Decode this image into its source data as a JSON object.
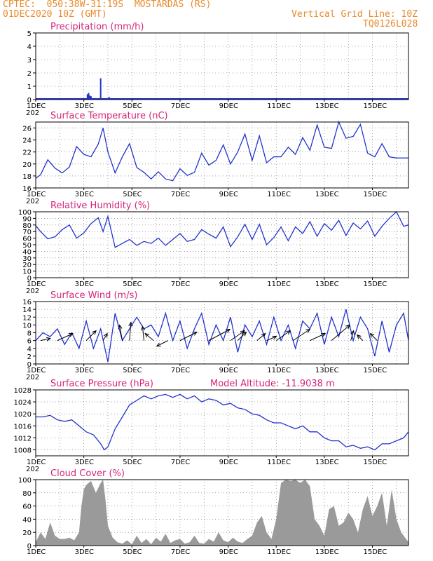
{
  "header": {
    "station_line": "CPTEC:  050:38W-31:19S  MOSTARDAS (RS)",
    "date_line": "01DEC2020 10Z (GMT)",
    "grid_line": "Vertical Grid Line: 10Z",
    "code": "TQ0126L028"
  },
  "x_tick_labels": [
    "1DEC",
    "3DEC",
    "5DEC",
    "7DEC",
    "9DEC",
    "11DEC",
    "13DEC",
    "15DEC"
  ],
  "year_stub": "202",
  "chart_data": [
    {
      "id": "precip",
      "type": "bar",
      "title": "Precipitation (mm/h)",
      "ylim": [
        0,
        5
      ],
      "yticks": [
        0,
        1,
        2,
        3,
        4,
        5
      ],
      "color": "#2233cc",
      "x": [
        2.15,
        2.2,
        2.25,
        2.3,
        2.35,
        2.7,
        3.05
      ],
      "values": [
        0.4,
        0.5,
        0.3,
        0.25,
        0.1,
        1.6,
        0.2
      ]
    },
    {
      "id": "temp",
      "type": "line",
      "title": "Surface Temperature (nC)",
      "ylim": [
        16,
        27
      ],
      "yticks": [
        16,
        18,
        20,
        22,
        24,
        26
      ],
      "color": "#2233cc",
      "x": [
        0,
        0.2,
        0.5,
        0.8,
        1.1,
        1.4,
        1.7,
        2.0,
        2.3,
        2.6,
        2.8,
        3.0,
        3.3,
        3.6,
        3.9,
        4.2,
        4.5,
        4.8,
        5.1,
        5.4,
        5.7,
        6.0,
        6.3,
        6.6,
        6.9,
        7.2,
        7.5,
        7.8,
        8.1,
        8.4,
        8.7,
        9.0,
        9.3,
        9.6,
        9.9,
        10.2,
        10.5,
        10.8,
        11.1,
        11.4,
        11.7,
        12.0,
        12.3,
        12.6,
        12.9,
        13.2,
        13.5,
        13.8,
        14.1,
        14.4,
        14.7,
        15.0,
        15.3,
        15.5
      ],
      "values": [
        17.6,
        18.2,
        20.7,
        19.3,
        18.5,
        19.5,
        22.9,
        21.6,
        21.2,
        23.3,
        26.0,
        22.0,
        18.5,
        21.2,
        23.4,
        19.4,
        18.6,
        17.5,
        18.7,
        17.5,
        17.2,
        19.2,
        18.1,
        18.6,
        21.8,
        19.8,
        20.6,
        23.2,
        20.0,
        22.0,
        25.0,
        20.6,
        24.7,
        20.2,
        21.2,
        21.2,
        22.8,
        21.6,
        24.4,
        22.3,
        26.5,
        22.8,
        22.6,
        27.0,
        24.3,
        24.6,
        26.6,
        21.8,
        21.2,
        23.4,
        21.2,
        21.0,
        21.0,
        21.0
      ]
    },
    {
      "id": "rh",
      "type": "line",
      "title": "Relative Humidity (%)",
      "ylim": [
        0,
        100
      ],
      "yticks": [
        0,
        10,
        20,
        30,
        40,
        50,
        60,
        70,
        80,
        90,
        100
      ],
      "color": "#2233cc",
      "x": [
        0,
        0.2,
        0.5,
        0.8,
        1.1,
        1.4,
        1.7,
        2.0,
        2.3,
        2.6,
        2.8,
        3.0,
        3.3,
        3.6,
        3.9,
        4.2,
        4.5,
        4.8,
        5.1,
        5.4,
        5.7,
        6.0,
        6.3,
        6.6,
        6.9,
        7.2,
        7.5,
        7.8,
        8.1,
        8.4,
        8.7,
        9.0,
        9.3,
        9.6,
        9.9,
        10.2,
        10.5,
        10.8,
        11.1,
        11.4,
        11.7,
        12.0,
        12.3,
        12.6,
        12.9,
        13.2,
        13.5,
        13.8,
        14.1,
        14.4,
        14.7,
        15.0,
        15.3,
        15.5
      ],
      "values": [
        79,
        70,
        59,
        62,
        73,
        80,
        60,
        68,
        82,
        91,
        70,
        93,
        46,
        52,
        58,
        49,
        55,
        52,
        60,
        49,
        58,
        67,
        55,
        58,
        73,
        66,
        60,
        77,
        47,
        62,
        81,
        58,
        81,
        50,
        61,
        77,
        56,
        77,
        67,
        85,
        63,
        82,
        72,
        87,
        64,
        83,
        74,
        86,
        63,
        78,
        90,
        100,
        78,
        80
      ]
    },
    {
      "id": "wind",
      "type": "line",
      "title": "Surface Wind (m/s)",
      "ylim": [
        0,
        16
      ],
      "yticks": [
        0,
        2,
        4,
        6,
        8,
        10,
        12,
        14,
        16
      ],
      "color": "#2233cc",
      "x": [
        0,
        0.3,
        0.6,
        0.9,
        1.2,
        1.5,
        1.8,
        2.1,
        2.4,
        2.7,
        3.0,
        3.3,
        3.6,
        3.9,
        4.2,
        4.5,
        4.8,
        5.1,
        5.4,
        5.7,
        6.0,
        6.3,
        6.6,
        6.9,
        7.2,
        7.5,
        7.8,
        8.1,
        8.4,
        8.7,
        9.0,
        9.3,
        9.6,
        9.9,
        10.2,
        10.5,
        10.8,
        11.1,
        11.4,
        11.7,
        12.0,
        12.3,
        12.6,
        12.9,
        13.2,
        13.5,
        13.8,
        14.1,
        14.4,
        14.7,
        15.0,
        15.3,
        15.5
      ],
      "values": [
        6,
        8,
        7,
        9,
        5,
        8,
        4,
        11,
        4,
        9,
        0.5,
        13,
        6,
        9,
        12,
        9,
        10,
        7,
        13,
        6,
        11,
        4,
        9,
        13,
        5,
        10,
        6,
        12,
        3,
        10,
        7,
        11,
        5,
        12,
        6,
        10,
        4,
        11,
        9,
        13,
        5,
        12,
        7,
        14,
        6,
        12,
        9,
        2,
        11,
        3,
        10,
        13,
        6
      ],
      "vectors": [
        {
          "x": 0.2,
          "dx": 14,
          "dy": -3
        },
        {
          "x": 0.9,
          "dx": 22,
          "dy": -10
        },
        {
          "x": 2.1,
          "dx": 14,
          "dy": -14
        },
        {
          "x": 2.8,
          "dx": 6,
          "dy": -10
        },
        {
          "x": 3.6,
          "dx": -4,
          "dy": -22
        },
        {
          "x": 3.9,
          "dx": 2,
          "dy": -26
        },
        {
          "x": 4.5,
          "dx": -2,
          "dy": -20
        },
        {
          "x": 4.9,
          "dx": -12,
          "dy": -10
        },
        {
          "x": 5.5,
          "dx": -16,
          "dy": 8
        },
        {
          "x": 6.0,
          "dx": 24,
          "dy": -12
        },
        {
          "x": 7.2,
          "dx": 30,
          "dy": -16
        },
        {
          "x": 8.1,
          "dx": 20,
          "dy": -14
        },
        {
          "x": 8.4,
          "dx": 12,
          "dy": -12
        },
        {
          "x": 9.2,
          "dx": 12,
          "dy": -10
        },
        {
          "x": 9.6,
          "dx": 14,
          "dy": -6
        },
        {
          "x": 10.0,
          "dx": 20,
          "dy": -14
        },
        {
          "x": 10.7,
          "dx": 24,
          "dy": -16
        },
        {
          "x": 11.4,
          "dx": 22,
          "dy": -10
        },
        {
          "x": 12.3,
          "dx": 26,
          "dy": -22
        },
        {
          "x": 13.1,
          "dx": 4,
          "dy": -14
        },
        {
          "x": 13.6,
          "dx": -8,
          "dy": -8
        },
        {
          "x": 14.2,
          "dx": -10,
          "dy": -10
        }
      ]
    },
    {
      "id": "pressure",
      "type": "line",
      "title": "Surface Pressure (hPa)",
      "note": "Model Altitude: -11.9038 m",
      "ylim": [
        1006,
        1028
      ],
      "yticks": [
        1008,
        1012,
        1016,
        1020,
        1024,
        1028
      ],
      "color": "#2233cc",
      "x": [
        0,
        0.3,
        0.6,
        0.9,
        1.2,
        1.5,
        1.8,
        2.1,
        2.4,
        2.7,
        2.85,
        3.0,
        3.3,
        3.6,
        3.9,
        4.2,
        4.5,
        4.8,
        5.1,
        5.4,
        5.7,
        6.0,
        6.3,
        6.6,
        6.9,
        7.2,
        7.5,
        7.8,
        8.1,
        8.4,
        8.7,
        9.0,
        9.3,
        9.6,
        9.9,
        10.2,
        10.5,
        10.8,
        11.1,
        11.4,
        11.7,
        12.0,
        12.3,
        12.6,
        12.9,
        13.2,
        13.5,
        13.8,
        14.1,
        14.4,
        14.7,
        15.0,
        15.3,
        15.5
      ],
      "values": [
        1019,
        1019,
        1019.5,
        1018,
        1017.5,
        1018,
        1016,
        1014,
        1013,
        1010,
        1008,
        1009,
        1015,
        1019,
        1023,
        1024.5,
        1026,
        1025,
        1026,
        1026.5,
        1025.5,
        1026.5,
        1025,
        1026,
        1024,
        1025,
        1024.5,
        1023,
        1023.5,
        1022,
        1021.5,
        1020,
        1019.5,
        1018,
        1017,
        1017,
        1016,
        1015,
        1016,
        1014,
        1014,
        1012,
        1011,
        1011,
        1009,
        1009.5,
        1008.5,
        1009,
        1008,
        1010,
        1010,
        1011,
        1012,
        1014
      ]
    },
    {
      "id": "cloud",
      "type": "area",
      "title": "Cloud Cover (%)",
      "ylim": [
        0,
        100
      ],
      "yticks": [
        0,
        20,
        40,
        60,
        80,
        100
      ],
      "color": "#9a9a9a",
      "x": [
        0,
        0.2,
        0.4,
        0.6,
        0.8,
        1.0,
        1.2,
        1.4,
        1.6,
        1.8,
        1.9,
        2.0,
        2.1,
        2.3,
        2.5,
        2.7,
        2.8,
        2.9,
        3.0,
        3.2,
        3.4,
        3.6,
        3.8,
        4.0,
        4.2,
        4.4,
        4.6,
        4.8,
        5.0,
        5.2,
        5.4,
        5.6,
        5.8,
        6.0,
        6.2,
        6.4,
        6.6,
        6.8,
        7.0,
        7.2,
        7.4,
        7.6,
        7.8,
        8.0,
        8.2,
        8.4,
        8.6,
        8.8,
        9.0,
        9.2,
        9.4,
        9.6,
        9.8,
        10.0,
        10.2,
        10.4,
        10.6,
        10.8,
        11.0,
        11.2,
        11.4,
        11.6,
        11.8,
        12.0,
        12.2,
        12.4,
        12.6,
        12.8,
        13.0,
        13.2,
        13.4,
        13.6,
        13.8,
        14.0,
        14.2,
        14.4,
        14.6,
        14.8,
        15.0,
        15.2,
        15.4,
        15.5
      ],
      "values": [
        5,
        20,
        10,
        35,
        15,
        10,
        10,
        12,
        8,
        20,
        60,
        85,
        92,
        98,
        80,
        95,
        100,
        70,
        30,
        12,
        5,
        3,
        8,
        2,
        15,
        4,
        10,
        2,
        12,
        6,
        18,
        4,
        8,
        10,
        3,
        5,
        15,
        4,
        3,
        10,
        6,
        20,
        8,
        5,
        12,
        6,
        4,
        10,
        15,
        35,
        45,
        20,
        10,
        40,
        95,
        100,
        98,
        100,
        95,
        100,
        90,
        40,
        30,
        15,
        55,
        60,
        30,
        35,
        50,
        40,
        20,
        55,
        75,
        45,
        60,
        80,
        30,
        85,
        40,
        20,
        10,
        5
      ]
    }
  ]
}
